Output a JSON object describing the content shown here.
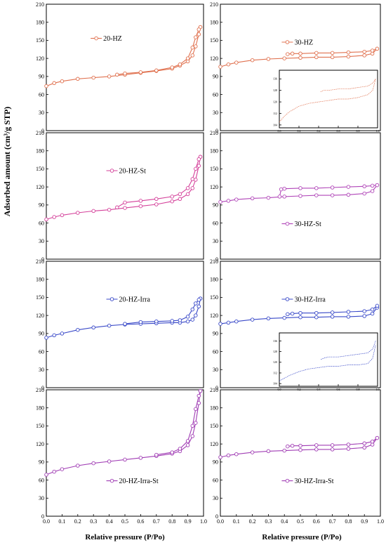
{
  "figure": {
    "ylabel": "Adsorbed amount (cm³/g STP)",
    "xlabel_left": "Relative pressure (P/Po)",
    "xlabel_right": "Relative pressure (P/Po)"
  },
  "chart_data": [
    {
      "type": "line",
      "panel": "20-HZ",
      "color": "#e0714f",
      "legend": "20-HZ",
      "legend_pos": "upper-left",
      "xlim": [
        0,
        1.0
      ],
      "ylim": [
        0,
        210
      ],
      "yticks": [
        0,
        30,
        60,
        90,
        120,
        150,
        180,
        210
      ],
      "xticks": [],
      "xticklabels": [],
      "series": [
        {
          "role": "adsorption",
          "x": [
            0.0,
            0.05,
            0.1,
            0.2,
            0.3,
            0.4,
            0.5,
            0.6,
            0.7,
            0.8,
            0.85,
            0.9,
            0.93,
            0.95,
            0.97,
            0.98
          ],
          "y": [
            74,
            79,
            82,
            86,
            88,
            90,
            93,
            96,
            99,
            103,
            108,
            115,
            125,
            140,
            160,
            172
          ]
        },
        {
          "role": "desorption",
          "x": [
            0.98,
            0.97,
            0.95,
            0.93,
            0.9,
            0.85,
            0.8,
            0.7,
            0.6,
            0.5,
            0.45
          ],
          "y": [
            172,
            168,
            155,
            138,
            120,
            110,
            105,
            100,
            97,
            95,
            93
          ]
        }
      ]
    },
    {
      "type": "line",
      "panel": "30-HZ",
      "color": "#e0714f",
      "legend": "30-HZ",
      "legend_pos": "upper-center",
      "xlim": [
        0,
        1.0
      ],
      "ylim": [
        0,
        210
      ],
      "yticks": [
        0,
        30,
        60,
        90,
        120,
        150,
        180,
        210
      ],
      "xticks": [],
      "xticklabels": [],
      "series": [
        {
          "role": "adsorption",
          "x": [
            0.0,
            0.05,
            0.1,
            0.2,
            0.3,
            0.4,
            0.5,
            0.6,
            0.7,
            0.8,
            0.9,
            0.95,
            0.98
          ],
          "y": [
            106,
            110,
            113,
            117,
            119,
            120,
            121,
            122,
            122,
            123,
            125,
            128,
            136
          ]
        },
        {
          "role": "desorption",
          "x": [
            0.98,
            0.95,
            0.9,
            0.8,
            0.7,
            0.6,
            0.5,
            0.45,
            0.42
          ],
          "y": [
            136,
            133,
            131,
            130,
            129,
            129,
            128,
            128,
            127
          ]
        }
      ],
      "inset": {
        "xlim": [
          0,
          1.0
        ],
        "ylim": [
          102,
          142
        ],
        "yticks": [
          104,
          112,
          120,
          128,
          136
        ],
        "xticks": [
          0.0,
          0.2,
          0.4,
          0.6,
          0.8,
          1.0
        ],
        "xticklabels": [
          "0.0",
          "0.2",
          "0.4",
          "0.6",
          "0.8",
          "1.0"
        ],
        "series": [
          {
            "x": [
              0.0,
              0.05,
              0.1,
              0.2,
              0.3,
              0.4,
              0.5,
              0.6,
              0.7,
              0.8,
              0.9,
              0.95,
              0.98
            ],
            "y": [
              106,
              110,
              113,
              117,
              119,
              120,
              121,
              122,
              122,
              123,
              125,
              128,
              136
            ]
          },
          {
            "x": [
              0.98,
              0.95,
              0.9,
              0.8,
              0.7,
              0.6,
              0.5,
              0.45,
              0.42
            ],
            "y": [
              136,
              133,
              131,
              130,
              129,
              129,
              128,
              128,
              127
            ]
          }
        ]
      }
    },
    {
      "type": "line",
      "panel": "20-HZ-St",
      "color": "#d4409a",
      "legend": "20-HZ-St",
      "legend_pos": "upper-center",
      "xlim": [
        0,
        1.0
      ],
      "ylim": [
        0,
        210
      ],
      "yticks": [
        0,
        30,
        60,
        90,
        120,
        150,
        180,
        210
      ],
      "xticks": [],
      "xticklabels": [],
      "series": [
        {
          "role": "adsorption",
          "x": [
            0.0,
            0.05,
            0.1,
            0.2,
            0.3,
            0.4,
            0.5,
            0.6,
            0.7,
            0.8,
            0.85,
            0.9,
            0.93,
            0.95,
            0.97,
            0.98
          ],
          "y": [
            66,
            70,
            73,
            77,
            80,
            82,
            85,
            88,
            91,
            96,
            100,
            108,
            118,
            132,
            155,
            170
          ]
        },
        {
          "role": "desorption",
          "x": [
            0.98,
            0.97,
            0.95,
            0.93,
            0.9,
            0.85,
            0.8,
            0.7,
            0.6,
            0.5,
            0.45
          ],
          "y": [
            170,
            166,
            150,
            133,
            118,
            108,
            104,
            100,
            97,
            94,
            86
          ]
        }
      ]
    },
    {
      "type": "line",
      "panel": "30-HZ-St",
      "color": "#b045b8",
      "legend": "30-HZ-St",
      "legend_pos": "lower-center",
      "xlim": [
        0,
        1.0
      ],
      "ylim": [
        0,
        210
      ],
      "yticks": [
        0,
        30,
        60,
        90,
        120,
        150,
        180,
        210
      ],
      "xticks": [],
      "xticklabels": [],
      "series": [
        {
          "role": "adsorption",
          "x": [
            0.0,
            0.05,
            0.1,
            0.2,
            0.3,
            0.4,
            0.5,
            0.6,
            0.7,
            0.8,
            0.9,
            0.95,
            0.98
          ],
          "y": [
            95,
            97,
            99,
            101,
            102,
            104,
            105,
            106,
            106,
            107,
            109,
            113,
            123
          ]
        },
        {
          "role": "desorption",
          "x": [
            0.98,
            0.95,
            0.9,
            0.8,
            0.7,
            0.6,
            0.5,
            0.4,
            0.38,
            0.37
          ],
          "y": [
            123,
            122,
            121,
            120,
            119,
            118,
            118,
            117,
            116,
            104
          ]
        }
      ]
    },
    {
      "type": "line",
      "panel": "20-HZ-Irra",
      "color": "#3848c8",
      "legend": "20-HZ-Irra",
      "legend_pos": "upper-center",
      "xlim": [
        0,
        1.0
      ],
      "ylim": [
        0,
        210
      ],
      "yticks": [
        0,
        30,
        60,
        90,
        120,
        150,
        180,
        210
      ],
      "xticks": [],
      "xticklabels": [],
      "series": [
        {
          "role": "adsorption",
          "x": [
            0.0,
            0.05,
            0.1,
            0.2,
            0.3,
            0.4,
            0.5,
            0.6,
            0.7,
            0.8,
            0.85,
            0.9,
            0.93,
            0.95,
            0.97,
            0.98
          ],
          "y": [
            83,
            87,
            90,
            96,
            100,
            103,
            105,
            106,
            107,
            108,
            108,
            110,
            113,
            120,
            135,
            148
          ]
        },
        {
          "role": "desorption",
          "x": [
            0.98,
            0.97,
            0.95,
            0.93,
            0.9,
            0.85,
            0.8,
            0.7,
            0.6,
            0.5
          ],
          "y": [
            148,
            146,
            140,
            130,
            118,
            112,
            111,
            110,
            109,
            106
          ]
        }
      ]
    },
    {
      "type": "line",
      "panel": "30-HZ-Irra",
      "color": "#3848c8",
      "legend": "30-HZ-Irra",
      "legend_pos": "upper-center",
      "xlim": [
        0,
        1.0
      ],
      "ylim": [
        0,
        210
      ],
      "yticks": [
        0,
        30,
        60,
        90,
        120,
        150,
        180,
        210
      ],
      "xticks": [],
      "xticklabels": [],
      "series": [
        {
          "role": "adsorption",
          "x": [
            0.0,
            0.05,
            0.1,
            0.2,
            0.3,
            0.4,
            0.5,
            0.6,
            0.7,
            0.8,
            0.9,
            0.95,
            0.98
          ],
          "y": [
            106,
            108,
            110,
            113,
            115,
            116,
            117,
            117,
            118,
            118,
            119,
            123,
            133
          ]
        },
        {
          "role": "desorption",
          "x": [
            0.98,
            0.95,
            0.9,
            0.8,
            0.7,
            0.6,
            0.5,
            0.45,
            0.42
          ],
          "y": [
            136,
            130,
            127,
            126,
            125,
            124,
            124,
            123,
            122
          ]
        }
      ],
      "inset": {
        "xlim": [
          0,
          1.0
        ],
        "ylim": [
          102,
          142
        ],
        "yticks": [
          104,
          112,
          120,
          128,
          136
        ],
        "xticks": [
          0.0,
          0.2,
          0.4,
          0.6,
          0.8,
          1.0
        ],
        "xticklabels": [
          "0.0",
          "0.2",
          "0.4",
          "0.6",
          "0.8",
          "1.0"
        ],
        "series": [
          {
            "x": [
              0.0,
              0.05,
              0.1,
              0.2,
              0.3,
              0.4,
              0.5,
              0.6,
              0.7,
              0.8,
              0.9,
              0.95,
              0.98
            ],
            "y": [
              106,
              108,
              110,
              113,
              115,
              116,
              117,
              117,
              118,
              118,
              119,
              123,
              133
            ]
          },
          {
            "x": [
              0.98,
              0.95,
              0.9,
              0.8,
              0.7,
              0.6,
              0.5,
              0.45,
              0.42
            ],
            "y": [
              136,
              130,
              127,
              126,
              125,
              124,
              124,
              123,
              122
            ]
          }
        ]
      }
    },
    {
      "type": "line",
      "panel": "20-HZ-Irra-St",
      "color": "#a03cb4",
      "legend": "20-HZ-Irra-St",
      "legend_pos": "lower-center",
      "xlim": [
        0,
        1.0
      ],
      "ylim": [
        0,
        210
      ],
      "yticks": [
        0,
        30,
        60,
        90,
        120,
        150,
        180,
        210
      ],
      "xticks": [
        0.0,
        0.1,
        0.2,
        0.3,
        0.4,
        0.5,
        0.6,
        0.7,
        0.8,
        0.9,
        1.0
      ],
      "xticklabels": [
        "0.0",
        "0.1",
        "0.2",
        "0.3",
        "0.4",
        "0.5",
        "0.6",
        "0.7",
        "0.8",
        "0.9",
        "1.0"
      ],
      "series": [
        {
          "role": "adsorption",
          "x": [
            0.0,
            0.05,
            0.1,
            0.2,
            0.3,
            0.4,
            0.5,
            0.6,
            0.7,
            0.8,
            0.85,
            0.9,
            0.93,
            0.95,
            0.97,
            0.98
          ],
          "y": [
            69,
            74,
            78,
            84,
            88,
            91,
            94,
            97,
            100,
            104,
            108,
            118,
            133,
            155,
            188,
            208
          ]
        },
        {
          "role": "desorption",
          "x": [
            0.98,
            0.97,
            0.95,
            0.93,
            0.9,
            0.85,
            0.8,
            0.7
          ],
          "y": [
            208,
            200,
            178,
            150,
            125,
            112,
            106,
            102
          ]
        }
      ]
    },
    {
      "type": "line",
      "panel": "30-HZ-Irra-St",
      "color": "#a03cb4",
      "legend": "30-HZ-Irra-St",
      "legend_pos": "lower-center",
      "xlim": [
        0,
        1.0
      ],
      "ylim": [
        0,
        210
      ],
      "yticks": [
        0,
        30,
        60,
        90,
        120,
        150,
        180,
        210
      ],
      "xticks": [
        0.0,
        0.1,
        0.2,
        0.3,
        0.4,
        0.5,
        0.6,
        0.7,
        0.8,
        0.9,
        1.0
      ],
      "xticklabels": [
        "0.0",
        "0.1",
        "0.2",
        "0.3",
        "0.4",
        "0.5",
        "0.6",
        "0.7",
        "0.8",
        "0.9",
        "1.0"
      ],
      "series": [
        {
          "role": "adsorption",
          "x": [
            0.0,
            0.05,
            0.1,
            0.2,
            0.3,
            0.4,
            0.5,
            0.6,
            0.7,
            0.8,
            0.9,
            0.95,
            0.98
          ],
          "y": [
            98,
            101,
            103,
            106,
            108,
            109,
            110,
            111,
            111,
            112,
            114,
            119,
            130
          ]
        },
        {
          "role": "desorption",
          "x": [
            0.98,
            0.95,
            0.9,
            0.8,
            0.7,
            0.6,
            0.5,
            0.45,
            0.42
          ],
          "y": [
            130,
            124,
            121,
            119,
            118,
            118,
            117,
            117,
            116
          ]
        }
      ]
    }
  ]
}
